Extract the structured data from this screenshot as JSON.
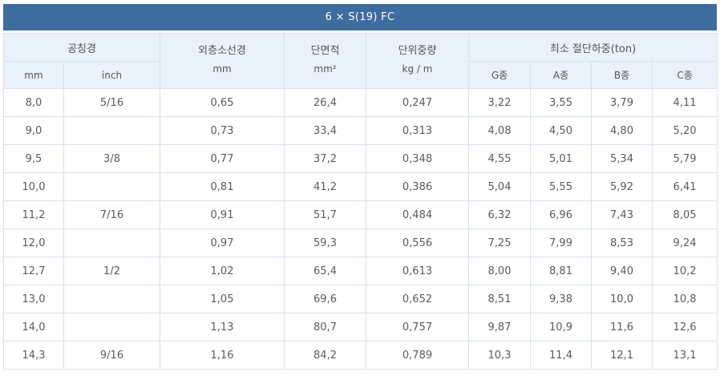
{
  "title": "6 × S(19) FC",
  "headers": {
    "nominal_dia": "공칭경",
    "outer_wire_dia": "외층소선경",
    "outer_wire_unit": "mm",
    "cross_section": "단면적",
    "cross_section_unit": "mm²",
    "unit_weight": "단위중량",
    "unit_weight_unit": "kg / m",
    "min_breaking_load": "최소 절단하중(ton)",
    "sub": {
      "mm": "mm",
      "inch": "inch",
      "g": "G종",
      "a": "A종",
      "b": "B종",
      "c": "C종"
    }
  },
  "rows": [
    {
      "mm": "8,0",
      "inch": "5/16",
      "wire": "0,65",
      "area": "26,4",
      "weight": "0,247",
      "g": "3,22",
      "a": "3,55",
      "b": "3,79",
      "c": "4,11"
    },
    {
      "mm": "9,0",
      "inch": "",
      "wire": "0,73",
      "area": "33,4",
      "weight": "0,313",
      "g": "4,08",
      "a": "4,50",
      "b": "4,80",
      "c": "5,20"
    },
    {
      "mm": "9,5",
      "inch": "3/8",
      "wire": "0,77",
      "area": "37,2",
      "weight": "0,348",
      "g": "4,55",
      "a": "5,01",
      "b": "5,34",
      "c": "5,79"
    },
    {
      "mm": "10,0",
      "inch": "",
      "wire": "0,81",
      "area": "41,2",
      "weight": "0,386",
      "g": "5,04",
      "a": "5,55",
      "b": "5,92",
      "c": "6,41"
    },
    {
      "mm": "11,2",
      "inch": "7/16",
      "wire": "0,91",
      "area": "51,7",
      "weight": "0,484",
      "g": "6,32",
      "a": "6,96",
      "b": "7,43",
      "c": "8,05"
    },
    {
      "mm": "12,0",
      "inch": "",
      "wire": "0,97",
      "area": "59,3",
      "weight": "0,556",
      "g": "7,25",
      "a": "7,99",
      "b": "8,53",
      "c": "9,24"
    },
    {
      "mm": "12,7",
      "inch": "1/2",
      "wire": "1,02",
      "area": "65,4",
      "weight": "0,613",
      "g": "8,00",
      "a": "8,81",
      "b": "9,40",
      "c": "10,2"
    },
    {
      "mm": "13,0",
      "inch": "",
      "wire": "1,05",
      "area": "69,6",
      "weight": "0,652",
      "g": "8,51",
      "a": "9,38",
      "b": "10,0",
      "c": "10,8"
    },
    {
      "mm": "14,0",
      "inch": "",
      "wire": "1,13",
      "area": "80,7",
      "weight": "0,757",
      "g": "9,87",
      "a": "10,9",
      "b": "11,6",
      "c": "12,6"
    },
    {
      "mm": "14,3",
      "inch": "9/16",
      "wire": "1,16",
      "area": "84,2",
      "weight": "0,789",
      "g": "10,3",
      "a": "11,4",
      "b": "12,1",
      "c": "13,1"
    }
  ]
}
